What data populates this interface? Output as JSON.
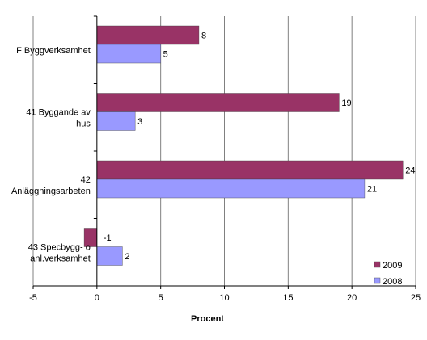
{
  "chart_data": {
    "type": "bar",
    "orientation": "horizontal",
    "categories": [
      "F Byggverksamhet",
      "41 Byggande av hus",
      "42 Anläggningsarbeten",
      "43 Specbygg- o anl.verksamhet"
    ],
    "series": [
      {
        "name": "2009",
        "values": [
          8,
          19,
          24,
          -1
        ],
        "labels": [
          "8",
          "19",
          "24",
          "-1"
        ],
        "color": "#993366"
      },
      {
        "name": "2008",
        "values": [
          5,
          3,
          21,
          2
        ],
        "labels": [
          "5",
          "3",
          "21",
          "2"
        ],
        "color": "#9999ff"
      }
    ],
    "xlabel": "Procent",
    "xlim": [
      -5,
      25
    ],
    "xticks": [
      -5,
      0,
      5,
      10,
      15,
      20,
      25
    ],
    "xtick_labels": [
      "-5",
      "0",
      "5",
      "10",
      "15",
      "20",
      "25"
    ],
    "grid": "vertical",
    "legend": "bottom-right"
  }
}
